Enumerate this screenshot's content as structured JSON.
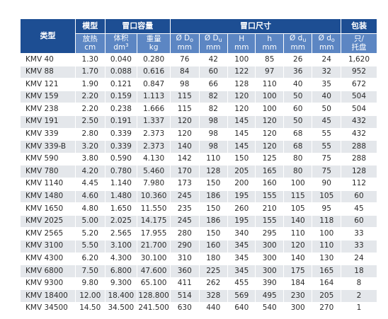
{
  "header": {
    "type_label": "类型",
    "model_group": "模型",
    "capacity_group": "冒口容量",
    "size_group": "冒口尺寸",
    "pack_group": "包装"
  },
  "subheaders": {
    "modulus": [
      "放热",
      "cm"
    ],
    "volume": [
      "体积",
      "dm",
      "3"
    ],
    "weight": [
      "重量",
      "kg"
    ],
    "D0": [
      "Ø D",
      "o",
      "mm"
    ],
    "Du": [
      "Ø D",
      "u",
      "mm"
    ],
    "H": [
      "H",
      "mm"
    ],
    "h": [
      "h",
      "mm"
    ],
    "du": [
      "Ø d",
      "u",
      "mm"
    ],
    "d0": [
      "Ø d",
      "o",
      "mm"
    ],
    "pack": [
      "只/",
      "托盘"
    ]
  },
  "rows": [
    [
      "KMV 40",
      "1.30",
      "0.040",
      "0.280",
      "76",
      "42",
      "100",
      "85",
      "26",
      "24",
      "1,620"
    ],
    [
      "KMV 88",
      "1.70",
      "0.088",
      "0.616",
      "84",
      "60",
      "122",
      "97",
      "36",
      "32",
      "952"
    ],
    [
      "KMV 121",
      "1.90",
      "0.121",
      "0.847",
      "98",
      "66",
      "128",
      "110",
      "40",
      "35",
      "672"
    ],
    [
      "KMV 159",
      "2.20",
      "0.159",
      "1.113",
      "115",
      "82",
      "120",
      "100",
      "50",
      "40",
      "504"
    ],
    [
      "KMV 238",
      "2.20",
      "0.238",
      "1.666",
      "115",
      "82",
      "120",
      "100",
      "60",
      "50",
      "504"
    ],
    [
      "KMV 191",
      "2.50",
      "0.191",
      "1.337",
      "120",
      "98",
      "145",
      "120",
      "50",
      "45",
      "432"
    ],
    [
      "KMV 339",
      "2.80",
      "0.339",
      "2.373",
      "120",
      "98",
      "145",
      "120",
      "68",
      "55",
      "432"
    ],
    [
      "KMV 339-B",
      "3.20",
      "0.339",
      "2.373",
      "140",
      "98",
      "145",
      "120",
      "68",
      "55",
      "288"
    ],
    [
      "KMV 590",
      "3.80",
      "0.590",
      "4.130",
      "142",
      "110",
      "150",
      "125",
      "80",
      "75",
      "288"
    ],
    [
      "KMV 780",
      "4.20",
      "0.780",
      "5.460",
      "170",
      "128",
      "205",
      "165",
      "80",
      "75",
      "128"
    ],
    [
      "KMV 1140",
      "4.45",
      "1.140",
      "7.980",
      "173",
      "150",
      "200",
      "160",
      "100",
      "90",
      "112"
    ],
    [
      "KMV 1480",
      "4.60",
      "1.480",
      "10.360",
      "245",
      "186",
      "195",
      "155",
      "115",
      "105",
      "60"
    ],
    [
      "KMV 1650",
      "4.80",
      "1.650",
      "11.550",
      "235",
      "150",
      "260",
      "210",
      "105",
      "95",
      "45"
    ],
    [
      "KMV 2025",
      "5.00",
      "2.025",
      "14.175",
      "245",
      "186",
      "195",
      "155",
      "140",
      "118",
      "60"
    ],
    [
      "KMV 2565",
      "5.20",
      "2.565",
      "17.955",
      "280",
      "150",
      "340",
      "295",
      "110",
      "100",
      "33"
    ],
    [
      "KMV 3100",
      "5.50",
      "3.100",
      "21.700",
      "290",
      "160",
      "345",
      "300",
      "120",
      "110",
      "33"
    ],
    [
      "KMV 4300",
      "6.20",
      "4.300",
      "30.100",
      "310",
      "180",
      "345",
      "300",
      "140",
      "130",
      "24"
    ],
    [
      "KMV 6800",
      "7.50",
      "6.800",
      "47.600",
      "360",
      "225",
      "345",
      "300",
      "175",
      "165",
      "18"
    ],
    [
      "KMV 9300",
      "9.80",
      "9.300",
      "65.100",
      "411",
      "262",
      "455",
      "390",
      "184",
      "164",
      "8"
    ],
    [
      "KMV 18400",
      "12.00",
      "18.400",
      "128.800",
      "514",
      "328",
      "569",
      "495",
      "230",
      "205",
      "2"
    ],
    [
      "KMV 34500",
      "14.50",
      "34.500",
      "241.500",
      "630",
      "440",
      "640",
      "540",
      "300",
      "270",
      "1"
    ]
  ],
  "colors": {
    "header_dark": "#1d4e93",
    "header_light": "#5c86c3",
    "row_alt": "#e4e7eb"
  }
}
